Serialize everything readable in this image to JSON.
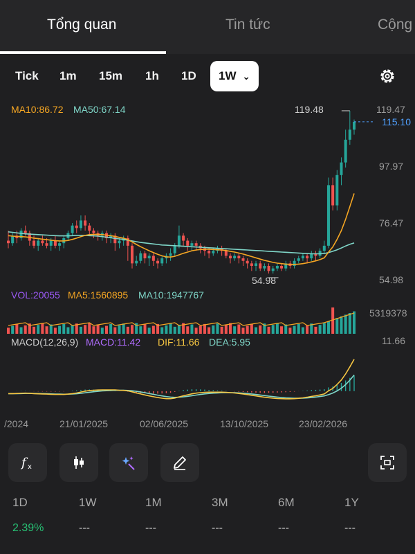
{
  "top_tabs": [
    {
      "label": "Tổng quan",
      "active": true
    },
    {
      "label": "Tin tức",
      "active": false
    },
    {
      "label": "Cộng",
      "active": false
    }
  ],
  "timeframes": [
    "Tick",
    "1m",
    "15m",
    "1h",
    "1D",
    "1W"
  ],
  "selected_timeframe": "1W",
  "dropdown_glyph": "⌄",
  "indicators": {
    "ma10": "MA10:86.72",
    "ma50": "MA50:67.14",
    "vol": "VOL:20055",
    "vol_ma5": "MA5:1560895",
    "vol_ma10": "MA10:1947767",
    "macd_name": "MACD(12,26,9)",
    "macd": "MACD:11.42",
    "dif": "DIF:11.66",
    "dea": "DEA:5.95"
  },
  "price_axis": {
    "labels": [
      "119.47",
      "97.97",
      "76.47",
      "54.98"
    ],
    "current_price": "115.10",
    "high_label": "119.48",
    "low_label": "54.98",
    "volume_max": "5319378",
    "macd_axis": "11.66"
  },
  "x_axis_dates": [
    "/2024",
    "21/01/2025",
    "02/06/2025",
    "13/10/2025",
    "23/02/2026"
  ],
  "tools": [
    "function-icon",
    "candlestick-icon",
    "magic-wand-icon",
    "pencil-icon",
    "screenshot-icon"
  ],
  "periods": [
    {
      "label": "1D",
      "value": "2.39%"
    },
    {
      "label": "1W",
      "value": "---"
    },
    {
      "label": "1M",
      "value": "---"
    },
    {
      "label": "3M",
      "value": "---"
    },
    {
      "label": "6M",
      "value": "---"
    },
    {
      "label": "1Y",
      "value": "---"
    }
  ],
  "colors": {
    "up": "#26a69a",
    "down": "#ef5350",
    "ma10": "#f5a623",
    "ma50": "#7fd6c8",
    "dif": "#f5c542",
    "dea": "#7fd6c8",
    "macd_label": "#b06cff",
    "vol_label": "#9b59f5",
    "accent_price": "#4fa0ff",
    "positive": "#27c074"
  },
  "chart_data": {
    "type": "candlestick",
    "y_range": [
      54.98,
      119.47
    ],
    "candles": [
      [
        68,
        67,
        72,
        65
      ],
      [
        67,
        70,
        71,
        66
      ],
      [
        70,
        69,
        72,
        67
      ],
      [
        69,
        72,
        73,
        68
      ],
      [
        72,
        71,
        74,
        70
      ],
      [
        71,
        68,
        72,
        66
      ],
      [
        68,
        66,
        70,
        65
      ],
      [
        66,
        68,
        69,
        64
      ],
      [
        68,
        67,
        70,
        66
      ],
      [
        67,
        66,
        69,
        65
      ],
      [
        66,
        68,
        69,
        64
      ],
      [
        68,
        66,
        70,
        65
      ],
      [
        66,
        67,
        68,
        64
      ],
      [
        67,
        69,
        70,
        65
      ],
      [
        69,
        71,
        72,
        68
      ],
      [
        71,
        74,
        75,
        70
      ],
      [
        74,
        73,
        76,
        71
      ],
      [
        73,
        76,
        78,
        72
      ],
      [
        76,
        74,
        78,
        72
      ],
      [
        74,
        72,
        75,
        70
      ],
      [
        72,
        71,
        73,
        69
      ],
      [
        71,
        70,
        72,
        68
      ],
      [
        70,
        71,
        72,
        68
      ],
      [
        71,
        69,
        72,
        67
      ],
      [
        69,
        70,
        71,
        67
      ],
      [
        70,
        67,
        71,
        64
      ],
      [
        67,
        68,
        69,
        65
      ],
      [
        68,
        69,
        70,
        66
      ],
      [
        69,
        66,
        70,
        60
      ],
      [
        66,
        59,
        67,
        57
      ],
      [
        59,
        60,
        62,
        58
      ],
      [
        60,
        63,
        64,
        59
      ],
      [
        63,
        61,
        64,
        59
      ],
      [
        61,
        62,
        63,
        58
      ],
      [
        62,
        60,
        63,
        58
      ],
      [
        60,
        59,
        61,
        57
      ],
      [
        59,
        61,
        62,
        58
      ],
      [
        61,
        62,
        63,
        59
      ],
      [
        62,
        63,
        65,
        60
      ],
      [
        63,
        66,
        67,
        62
      ],
      [
        66,
        70,
        74,
        65
      ],
      [
        70,
        68,
        71,
        66
      ],
      [
        68,
        66,
        69,
        64
      ],
      [
        66,
        67,
        68,
        64
      ],
      [
        67,
        66,
        68,
        64
      ],
      [
        66,
        65,
        67,
        63
      ],
      [
        65,
        64,
        66,
        62
      ],
      [
        64,
        63,
        65,
        61
      ],
      [
        63,
        64,
        65,
        62
      ],
      [
        64,
        65,
        66,
        63
      ],
      [
        65,
        64,
        66,
        62
      ],
      [
        64,
        62,
        65,
        61
      ],
      [
        62,
        61,
        63,
        59
      ],
      [
        61,
        62,
        63,
        60
      ],
      [
        62,
        61,
        63,
        59
      ],
      [
        61,
        60,
        62,
        58
      ],
      [
        60,
        59,
        61,
        57
      ],
      [
        59,
        58,
        60,
        56
      ],
      [
        58,
        59,
        60,
        56
      ],
      [
        59,
        57,
        60,
        56
      ],
      [
        57,
        58,
        59,
        56
      ],
      [
        58,
        56,
        59,
        55
      ],
      [
        56,
        57,
        58,
        55
      ],
      [
        57,
        58,
        59,
        56
      ],
      [
        58,
        57,
        59,
        56
      ],
      [
        57,
        59,
        60,
        56
      ],
      [
        59,
        58,
        60,
        57
      ],
      [
        58,
        60,
        61,
        57
      ],
      [
        60,
        61,
        62,
        59
      ],
      [
        61,
        62,
        63,
        60
      ],
      [
        62,
        61,
        63,
        59
      ],
      [
        61,
        63,
        64,
        60
      ],
      [
        63,
        62,
        64,
        60
      ],
      [
        62,
        64,
        65,
        61
      ],
      [
        64,
        66,
        68,
        63
      ],
      [
        66,
        90,
        93,
        65
      ],
      [
        90,
        82,
        93,
        80
      ],
      [
        82,
        94,
        96,
        80
      ],
      [
        94,
        99,
        101,
        90
      ],
      [
        99,
        108,
        112,
        97
      ],
      [
        108,
        112,
        119.48,
        106
      ],
      [
        112,
        115.1,
        116,
        110
      ]
    ],
    "ma10": [
      70,
      69.8,
      69.7,
      69.6,
      69.5,
      69.3,
      69.0,
      68.8,
      68.6,
      68.4,
      68.2,
      68.0,
      67.9,
      67.9,
      68.1,
      68.5,
      69.0,
      69.6,
      70.1,
      70.4,
      70.5,
      70.5,
      70.4,
      70.2,
      70.0,
      69.7,
      69.3,
      69.0,
      68.4,
      67.5,
      66.5,
      65.6,
      64.8,
      64.0,
      63.3,
      62.6,
      62.0,
      61.6,
      61.5,
      61.8,
      62.4,
      63.0,
      63.5,
      64.0,
      64.3,
      64.5,
      64.6,
      64.6,
      64.5,
      64.4,
      64.3,
      64.1,
      63.8,
      63.5,
      63.1,
      62.7,
      62.2,
      61.7,
      61.2,
      60.7,
      60.2,
      59.8,
      59.4,
      59.1,
      58.9,
      58.7,
      58.6,
      58.6,
      58.7,
      58.9,
      59.2,
      59.6,
      60.0,
      60.5,
      61.2,
      63.5,
      65.5,
      68.5,
      72.0,
      76.5,
      81.5,
      86.7
    ],
    "ma50": [
      71.5,
      71.3,
      71.1,
      70.9,
      70.7,
      70.6,
      70.5,
      70.4,
      70.3,
      70.2,
      70.1,
      70.0,
      69.9,
      69.9,
      69.9,
      70.0,
      70.1,
      70.1,
      70.1,
      70.0,
      69.9,
      69.8,
      69.6,
      69.4,
      69.2,
      68.9,
      68.7,
      68.5,
      68.2,
      67.9,
      67.6,
      67.3,
      67.1,
      66.9,
      66.7,
      66.5,
      66.3,
      66.2,
      66.1,
      66.0,
      65.9,
      65.8,
      65.7,
      65.6,
      65.5,
      65.4,
      65.3,
      65.2,
      65.1,
      65.0,
      64.9,
      64.8,
      64.7,
      64.6,
      64.5,
      64.4,
      64.3,
      64.2,
      64.1,
      64.0,
      63.9,
      63.8,
      63.7,
      63.6,
      63.5,
      63.4,
      63.3,
      63.2,
      63.1,
      63.0,
      62.9,
      62.8,
      62.8,
      62.8,
      62.9,
      63.3,
      63.8,
      64.4,
      65.1,
      65.9,
      66.6,
      67.1
    ],
    "volume_max": 5319378,
    "macd_range": [
      -4,
      14
    ]
  }
}
